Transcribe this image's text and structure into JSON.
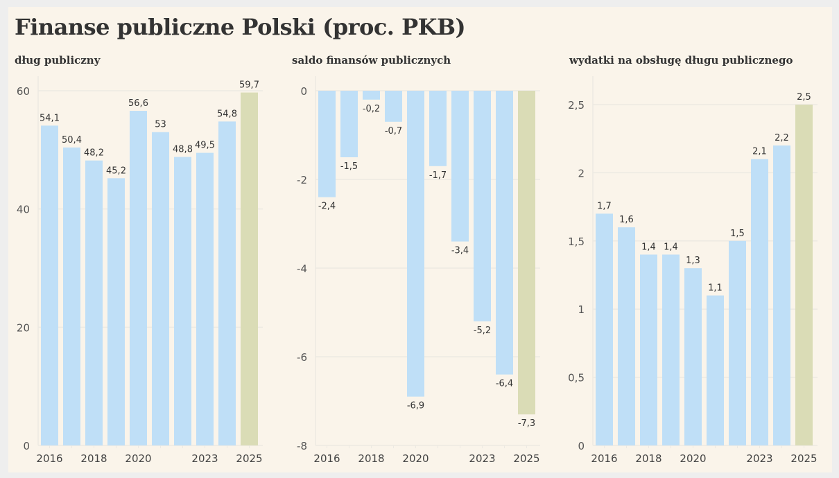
{
  "title": "Finanse publiczne Polski (proc. PKB)",
  "colors": {
    "background": "#faf4ea",
    "page": "#eeeeee",
    "bar": "#bfdff7",
    "bar_forecast": "#dadcb6",
    "grid": "#ece9e2",
    "text": "#333333"
  },
  "panels": [
    {
      "title": "dług publiczny"
    },
    {
      "title": "saldo finansów publicznych"
    },
    {
      "title": "wydatki na obsługę długu publicznego"
    }
  ],
  "chart_data": [
    {
      "type": "bar",
      "title": "dług publiczny",
      "xlabel": "",
      "ylabel": "",
      "categories": [
        "2016",
        "2017",
        "2018",
        "2019",
        "2020",
        "2021",
        "2022",
        "2023",
        "2024",
        "2025"
      ],
      "x_tick_labels": [
        "2016",
        "",
        "2018",
        "",
        "2020",
        "",
        "",
        "2023",
        "",
        "2025"
      ],
      "values": [
        54.1,
        50.4,
        48.2,
        45.2,
        56.6,
        53,
        48.8,
        49.5,
        54.8,
        59.7
      ],
      "value_labels": [
        "54,1",
        "50,4",
        "48,2",
        "45,2",
        "56,6",
        "53",
        "48,8",
        "49,5",
        "54,8",
        "59,7"
      ],
      "highlight_index": 9,
      "ylim": [
        0,
        60
      ],
      "yticks": [
        0,
        20,
        40,
        60
      ],
      "ytick_labels": [
        "0",
        "20",
        "40",
        "60"
      ],
      "grid": true
    },
    {
      "type": "bar",
      "title": "saldo finansów publicznych",
      "xlabel": "",
      "ylabel": "",
      "categories": [
        "2016",
        "2017",
        "2018",
        "2019",
        "2020",
        "2021",
        "2022",
        "2023",
        "2024",
        "2025"
      ],
      "x_tick_labels": [
        "2016",
        "",
        "2018",
        "",
        "2020",
        "",
        "",
        "2023",
        "",
        "2025"
      ],
      "values": [
        -2.4,
        -1.5,
        -0.2,
        -0.7,
        -6.9,
        -1.7,
        -3.4,
        -5.2,
        -6.4,
        -7.3
      ],
      "value_labels": [
        "-2,4",
        "-1,5",
        "-0,2",
        "-0,7",
        "-6,9",
        "-1,7",
        "-3,4",
        "-5,2",
        "-6,4",
        "-7,3"
      ],
      "highlight_index": 9,
      "ylim": [
        -8,
        0
      ],
      "yticks": [
        0,
        -2,
        -4,
        -6,
        -8
      ],
      "ytick_labels": [
        "0",
        "-2",
        "-4",
        "-6",
        "-8"
      ],
      "grid": true
    },
    {
      "type": "bar",
      "title": "wydatki na obsługę długu publicznego",
      "xlabel": "",
      "ylabel": "",
      "categories": [
        "2016",
        "2017",
        "2018",
        "2019",
        "2020",
        "2021",
        "2022",
        "2023",
        "2024",
        "2025"
      ],
      "x_tick_labels": [
        "2016",
        "",
        "2018",
        "",
        "2020",
        "",
        "",
        "2023",
        "",
        "2025"
      ],
      "values": [
        1.7,
        1.6,
        1.4,
        1.4,
        1.3,
        1.1,
        1.5,
        2.1,
        2.2,
        2.5
      ],
      "value_labels": [
        "1,7",
        "1,6",
        "1,4",
        "1,4",
        "1,3",
        "1,1",
        "1,5",
        "2,1",
        "2,2",
        "2,5"
      ],
      "highlight_index": 9,
      "ylim": [
        0,
        2.5
      ],
      "yticks": [
        0,
        0.5,
        1,
        1.5,
        2,
        2.5
      ],
      "ytick_labels": [
        "0",
        "0,5",
        "1",
        "1,5",
        "2",
        "2,5"
      ],
      "grid": true
    }
  ]
}
